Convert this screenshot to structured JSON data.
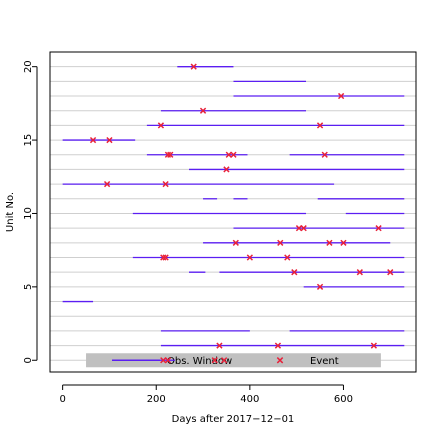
{
  "chart_data": {
    "type": "timeline",
    "xlabel": "Days after 2017−12−01",
    "ylabel": "Unit No.",
    "xlim": [
      -27,
      755
    ],
    "ylim": [
      -0.8,
      21.0
    ],
    "x_ticks": [
      0,
      200,
      400,
      600
    ],
    "y_ticks": [
      0,
      5,
      10,
      15,
      20
    ],
    "grid": "horizontal gridlines at each unit",
    "legend": {
      "position": "bottom",
      "items": [
        {
          "label": "Obs. Window",
          "kind": "line"
        },
        {
          "label": "Event",
          "kind": "cross"
        }
      ]
    },
    "colors": {
      "window": "#5b1ef2",
      "event": "#e8213a",
      "grid": "#cfcfcf",
      "legend_bg": "#c0c0c0"
    },
    "units": [
      {
        "unit": 0,
        "windows": [
          [
            180,
            240
          ]
        ],
        "events": [
          215,
          225,
          325,
          345
        ]
      },
      {
        "unit": 1,
        "windows": [
          [
            210,
            730
          ]
        ],
        "events": [
          335,
          460,
          665
        ]
      },
      {
        "unit": 2,
        "windows": [
          [
            210,
            400
          ],
          [
            485,
            730
          ]
        ],
        "events": []
      },
      {
        "unit": 3,
        "windows": [],
        "events": []
      },
      {
        "unit": 4,
        "windows": [
          [
            0,
            65
          ]
        ],
        "events": []
      },
      {
        "unit": 5,
        "windows": [
          [
            515,
            730
          ]
        ],
        "events": [
          550
        ]
      },
      {
        "unit": 6,
        "windows": [
          [
            270,
            305
          ],
          [
            335,
            730
          ]
        ],
        "events": [
          495,
          635,
          700
        ]
      },
      {
        "unit": 7,
        "windows": [
          [
            150,
            730
          ]
        ],
        "events": [
          215,
          220,
          400,
          480
        ]
      },
      {
        "unit": 8,
        "windows": [
          [
            300,
            700
          ]
        ],
        "events": [
          370,
          465,
          570,
          600
        ]
      },
      {
        "unit": 9,
        "windows": [
          [
            365,
            730
          ]
        ],
        "events": [
          505,
          515,
          675
        ]
      },
      {
        "unit": 10,
        "windows": [
          [
            150,
            520
          ],
          [
            605,
            730
          ]
        ],
        "events": []
      },
      {
        "unit": 11,
        "windows": [
          [
            300,
            330
          ],
          [
            365,
            395
          ],
          [
            545,
            730
          ]
        ],
        "events": []
      },
      {
        "unit": 12,
        "windows": [
          [
            0,
            580
          ]
        ],
        "events": [
          95,
          220
        ]
      },
      {
        "unit": 13,
        "windows": [
          [
            270,
            730
          ]
        ],
        "events": [
          350
        ]
      },
      {
        "unit": 14,
        "windows": [
          [
            180,
            395
          ],
          [
            485,
            730
          ]
        ],
        "events": [
          225,
          230,
          355,
          365,
          560
        ]
      },
      {
        "unit": 15,
        "windows": [
          [
            0,
            155
          ]
        ],
        "events": [
          65,
          100
        ]
      },
      {
        "unit": 16,
        "windows": [
          [
            180,
            730
          ]
        ],
        "events": [
          210,
          550
        ]
      },
      {
        "unit": 17,
        "windows": [
          [
            210,
            520
          ]
        ],
        "events": [
          300
        ]
      },
      {
        "unit": 18,
        "windows": [
          [
            365,
            730
          ]
        ],
        "events": [
          595
        ]
      },
      {
        "unit": 19,
        "windows": [
          [
            365,
            520
          ]
        ],
        "events": []
      },
      {
        "unit": 20,
        "windows": [
          [
            245,
            365
          ]
        ],
        "events": [
          280
        ]
      }
    ]
  }
}
